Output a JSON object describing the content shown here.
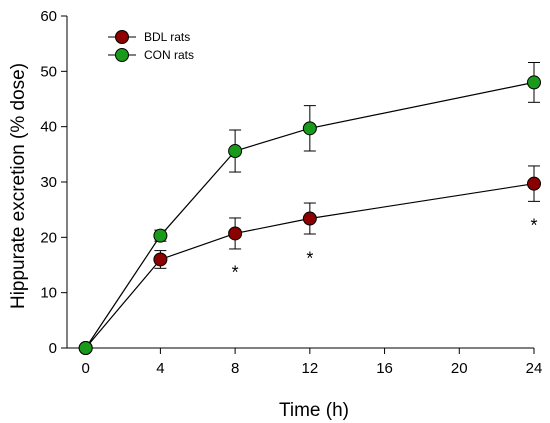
{
  "chart_data": {
    "type": "line",
    "xlabel": "Time (h)",
    "ylabel": "Hippurate excretion (% dose)",
    "xlim": [
      -1,
      24
    ],
    "ylim": [
      0,
      60
    ],
    "x_ticks": [
      {
        "x": 0,
        "label": "0"
      },
      {
        "x": 4,
        "label": "4"
      },
      {
        "x": 8,
        "label": "8"
      },
      {
        "x": 12,
        "label": "12"
      },
      {
        "x": 16,
        "label": "16"
      },
      {
        "x": 20,
        "label": "20"
      },
      {
        "x": 24,
        "label": "24"
      }
    ],
    "y_ticks": [
      0,
      10,
      20,
      30,
      40,
      50,
      60
    ],
    "grid": false,
    "legend_position": "top-left",
    "series": [
      {
        "name": "BDL rats",
        "color": "#8b0000",
        "points": [
          {
            "x": 0,
            "y": 0,
            "err": 0
          },
          {
            "x": 4,
            "y": 16.0,
            "err": 1.6
          },
          {
            "x": 8,
            "y": 20.7,
            "err": 2.8
          },
          {
            "x": 12,
            "y": 23.4,
            "err": 2.8
          },
          {
            "x": 24,
            "y": 29.7,
            "err": 3.2
          }
        ]
      },
      {
        "name": "CON rats",
        "color": "#1a9a1a",
        "points": [
          {
            "x": 0,
            "y": 0,
            "err": 0
          },
          {
            "x": 4,
            "y": 20.3,
            "err": 1.0
          },
          {
            "x": 8,
            "y": 35.6,
            "err": 3.8
          },
          {
            "x": 12,
            "y": 39.7,
            "err": 4.1
          },
          {
            "x": 24,
            "y": 48.0,
            "err": 3.6
          }
        ]
      }
    ],
    "annotations": [
      {
        "x": 8,
        "y": 14.0,
        "text": "*"
      },
      {
        "x": 12,
        "y": 16.5,
        "text": "*"
      },
      {
        "x": 24,
        "y": 22.5,
        "text": "*"
      }
    ]
  }
}
